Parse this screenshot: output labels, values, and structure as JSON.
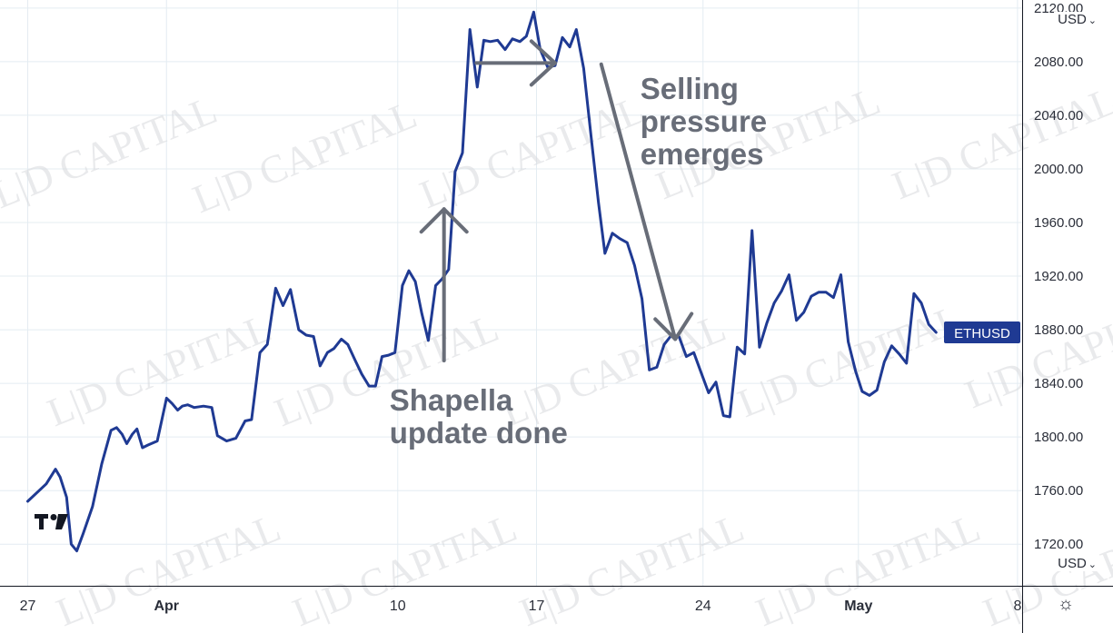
{
  "chart_data": {
    "type": "line",
    "series": [
      {
        "name": "ETHUSD",
        "color": "#1f3a93",
        "values": [
          [
            3.0,
            1752
          ],
          [
            5.0,
            1765
          ],
          [
            6.0,
            1776
          ],
          [
            6.5,
            1770
          ],
          [
            7.2,
            1755
          ],
          [
            7.7,
            1720
          ],
          [
            8.3,
            1715
          ],
          [
            9.0,
            1728
          ],
          [
            10.0,
            1748
          ],
          [
            11.0,
            1780
          ],
          [
            12.0,
            1805
          ],
          [
            12.6,
            1807
          ],
          [
            13.2,
            1802
          ],
          [
            13.7,
            1795
          ],
          [
            14.3,
            1802
          ],
          [
            14.8,
            1806
          ],
          [
            15.4,
            1792
          ],
          [
            16.0,
            1794
          ],
          [
            17.0,
            1797
          ],
          [
            18.0,
            1829
          ],
          [
            18.6,
            1825
          ],
          [
            19.2,
            1820
          ],
          [
            19.7,
            1823
          ],
          [
            20.3,
            1824
          ],
          [
            21.0,
            1822
          ],
          [
            22.0,
            1823
          ],
          [
            22.9,
            1822
          ],
          [
            23.5,
            1801
          ],
          [
            24.5,
            1797
          ],
          [
            25.5,
            1799
          ],
          [
            26.5,
            1812
          ],
          [
            27.2,
            1813
          ],
          [
            28.1,
            1863
          ],
          [
            28.9,
            1869
          ],
          [
            29.8,
            1911
          ],
          [
            30.6,
            1898
          ],
          [
            31.4,
            1910
          ],
          [
            32.3,
            1880
          ],
          [
            33.1,
            1876
          ],
          [
            33.9,
            1875
          ],
          [
            34.6,
            1853
          ],
          [
            35.4,
            1863
          ],
          [
            36.1,
            1866
          ],
          [
            36.9,
            1873
          ],
          [
            37.6,
            1869
          ],
          [
            38.4,
            1857
          ],
          [
            39.1,
            1847
          ],
          [
            39.9,
            1838
          ],
          [
            40.6,
            1838
          ],
          [
            41.3,
            1860
          ],
          [
            42.0,
            1861
          ],
          [
            42.7,
            1863
          ],
          [
            43.5,
            1913
          ],
          [
            44.2,
            1924
          ],
          [
            44.9,
            1916
          ],
          [
            45.6,
            1892
          ],
          [
            46.3,
            1872
          ],
          [
            47.1,
            1913
          ],
          [
            47.8,
            1918
          ],
          [
            48.5,
            1925
          ],
          [
            49.2,
            1998
          ],
          [
            50.0,
            2012
          ],
          [
            50.8,
            2104
          ],
          [
            51.6,
            2061
          ],
          [
            52.3,
            2096
          ],
          [
            53.0,
            2095
          ],
          [
            53.8,
            2096
          ],
          [
            54.6,
            2089
          ],
          [
            55.4,
            2097
          ],
          [
            56.2,
            2095
          ],
          [
            56.9,
            2099
          ],
          [
            57.7,
            2117
          ],
          [
            58.4,
            2089
          ],
          [
            59.2,
            2076
          ],
          [
            60.0,
            2077
          ],
          [
            60.8,
            2098
          ],
          [
            61.6,
            2091
          ],
          [
            62.3,
            2104
          ],
          [
            63.1,
            2075
          ],
          [
            63.9,
            2024
          ],
          [
            64.7,
            1975
          ],
          [
            65.4,
            1937
          ],
          [
            66.2,
            1952
          ],
          [
            67.0,
            1948
          ],
          [
            67.8,
            1945
          ],
          [
            68.6,
            1928
          ],
          [
            69.4,
            1903
          ],
          [
            70.2,
            1850
          ],
          [
            71.0,
            1852
          ],
          [
            71.8,
            1869
          ],
          [
            72.6,
            1876
          ],
          [
            73.4,
            1875
          ],
          [
            74.2,
            1860
          ],
          [
            75.0,
            1863
          ],
          [
            75.8,
            1848
          ],
          [
            76.6,
            1833
          ],
          [
            77.4,
            1841
          ],
          [
            78.2,
            1816
          ],
          [
            78.9,
            1815
          ],
          [
            79.7,
            1867
          ],
          [
            80.5,
            1862
          ],
          [
            81.3,
            1954
          ],
          [
            82.1,
            1867
          ],
          [
            82.9,
            1885
          ],
          [
            83.7,
            1900
          ],
          [
            84.5,
            1909
          ],
          [
            85.3,
            1921
          ],
          [
            86.1,
            1887
          ],
          [
            86.9,
            1893
          ],
          [
            87.7,
            1905
          ],
          [
            88.5,
            1908
          ],
          [
            89.3,
            1908
          ],
          [
            90.1,
            1904
          ],
          [
            90.9,
            1921
          ],
          [
            91.7,
            1871
          ],
          [
            92.5,
            1849
          ],
          [
            93.2,
            1834
          ],
          [
            94.0,
            1831
          ],
          [
            94.8,
            1835
          ],
          [
            95.6,
            1856
          ],
          [
            96.4,
            1868
          ],
          [
            97.2,
            1862
          ],
          [
            98.0,
            1855
          ],
          [
            98.8,
            1907
          ],
          [
            99.6,
            1900
          ],
          [
            100.4,
            1884
          ],
          [
            101.2,
            1878
          ]
        ]
      }
    ],
    "x_axis": {
      "ticks": [
        {
          "label": "27",
          "x": 3.0,
          "bold": false
        },
        {
          "label": "Apr",
          "x": 18.0,
          "bold": true
        },
        {
          "label": "10",
          "x": 43.0,
          "bold": false
        },
        {
          "label": "17",
          "x": 58.0,
          "bold": false
        },
        {
          "label": "24",
          "x": 76.0,
          "bold": false
        },
        {
          "label": "May",
          "x": 92.8,
          "bold": true
        },
        {
          "label": "8",
          "x": 110.0,
          "bold": false
        }
      ],
      "xlim": [
        0.0,
        110.5
      ]
    },
    "y_axis": {
      "ticks": [
        1720,
        1760,
        1800,
        1840,
        1880,
        1920,
        1960,
        2000,
        2040,
        2080,
        2120
      ],
      "tick_labels": [
        "1720.00",
        "1760.00",
        "1800.00",
        "1840.00",
        "1880.00",
        "1920.00",
        "1960.00",
        "2000.00",
        "2040.00",
        "2080.00",
        "2120.00"
      ],
      "ylim": [
        1689,
        2126
      ],
      "currency_top": "USD",
      "currency_bottom": "USD"
    },
    "price_label": {
      "text": "ETHUSD",
      "value": 1878,
      "color": "#1f3a93"
    },
    "grid": true,
    "annotations": [
      {
        "lines": [
          "Shapella",
          "update done"
        ],
        "arrow": {
          "from": [
            48.0,
            1857
          ],
          "to": [
            48.0,
            1970
          ],
          "head": "up"
        }
      },
      {
        "lines": [
          "Selling",
          "pressure",
          "emerges"
        ],
        "arrow": {
          "from": [
            65.0,
            2078
          ],
          "to": [
            73.0,
            1873
          ],
          "head": "down"
        }
      },
      {
        "arrow": {
          "from": [
            51.5,
            2079
          ],
          "to": [
            60.0,
            2079
          ],
          "head": "right"
        }
      }
    ],
    "watermark": "L|D CAPITAL"
  }
}
